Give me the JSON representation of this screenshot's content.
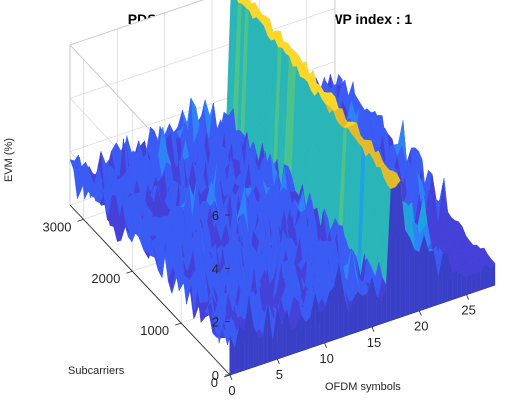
{
  "chart_data": {
    "type": "surface3d",
    "title": "PDSCH EVM Resource Grid, BWP index : 1",
    "xlabel": "OFDM symbols",
    "ylabel": "Subcarriers",
    "zlabel": "EVM (%)",
    "xlim": [
      0,
      28
    ],
    "ylim": [
      0,
      3276
    ],
    "zlim": [
      0,
      6
    ],
    "x_ticks": [
      "0",
      "5",
      "10",
      "15",
      "20",
      "25"
    ],
    "y_ticks": [
      "0",
      "1000",
      "2000",
      "3000"
    ],
    "z_ticks": [
      "0",
      "2",
      "4",
      "6"
    ],
    "grid": true,
    "colormap": "parula",
    "colormap_colors": [
      "#3e26a8",
      "#4440d8",
      "#3a5cf5",
      "#2f82f8",
      "#1fa2e0",
      "#2ab6b8",
      "#4cc28c",
      "#9ac63c",
      "#e2ba2c",
      "#fcd72a"
    ],
    "baseline_evm_range": [
      0.5,
      2
    ],
    "evm_ridge": {
      "ofdm_symbols": [
        17,
        18
      ],
      "evm_peak": 5.8
    },
    "evm_minor_peak": {
      "ofdm_symbol": 22,
      "subcarrier": 300,
      "evm_peak": 3
    }
  }
}
